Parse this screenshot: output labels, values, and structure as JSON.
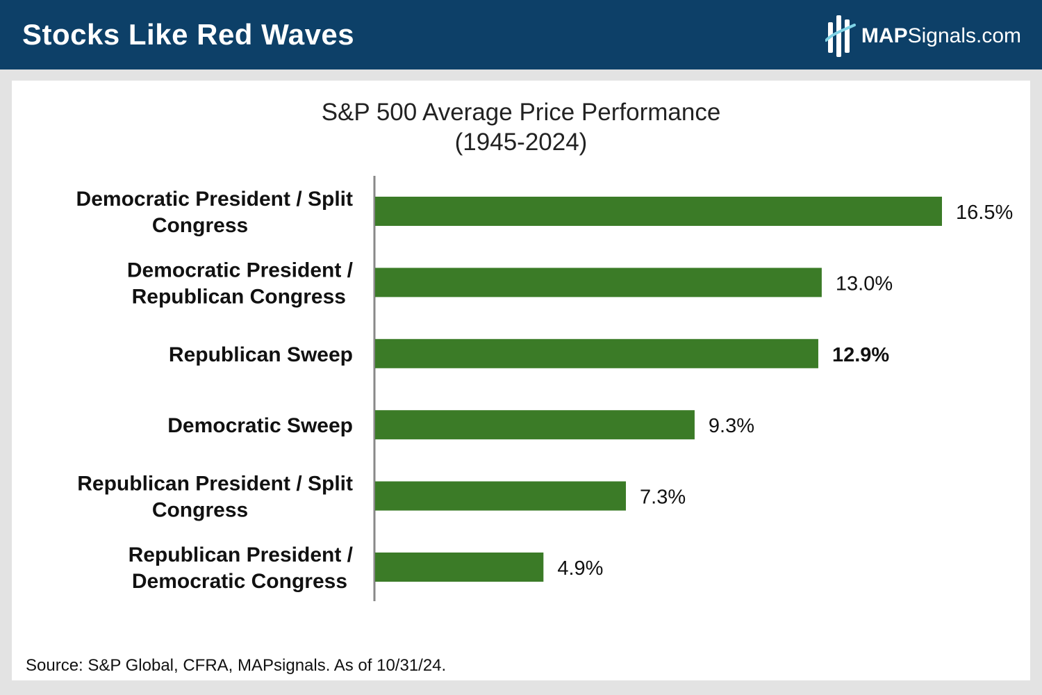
{
  "header": {
    "title": "Stocks Like Red Waves",
    "brand_bold": "MAP",
    "brand_rest": "Signals.com",
    "logo_icon": "mapsignals-logo-icon"
  },
  "chart_data": {
    "type": "bar",
    "orientation": "horizontal",
    "title": "S&P 500 Average Price Performance",
    "subtitle": "(1945-2024)",
    "categories": [
      [
        "Democratic President / Split",
        "Congress"
      ],
      [
        "Democratic President /",
        "Republican Congress"
      ],
      [
        "Republican Sweep"
      ],
      [
        "Democratic Sweep"
      ],
      [
        "Republican President / Split",
        "Congress"
      ],
      [
        "Republican President /",
        "Democratic Congress"
      ]
    ],
    "values": [
      16.5,
      13.0,
      12.9,
      9.3,
      7.3,
      4.9
    ],
    "value_labels": [
      "16.5%",
      "13.0%",
      "12.9%",
      "9.3%",
      "7.3%",
      "4.9%"
    ],
    "highlighted_label": "12.9%",
    "xlim": [
      0,
      16.5
    ],
    "bar_color": "#3b7b27",
    "grid": false,
    "legend": "none"
  },
  "footer": {
    "source": "Source: S&P Global, CFRA, MAPsignals. As of 10/31/24."
  },
  "colors": {
    "header_bg": "#0d4068",
    "page_bg": "#e3e3e3",
    "card_bg": "#ffffff",
    "bar": "#3b7b27",
    "axis": "#888888"
  }
}
